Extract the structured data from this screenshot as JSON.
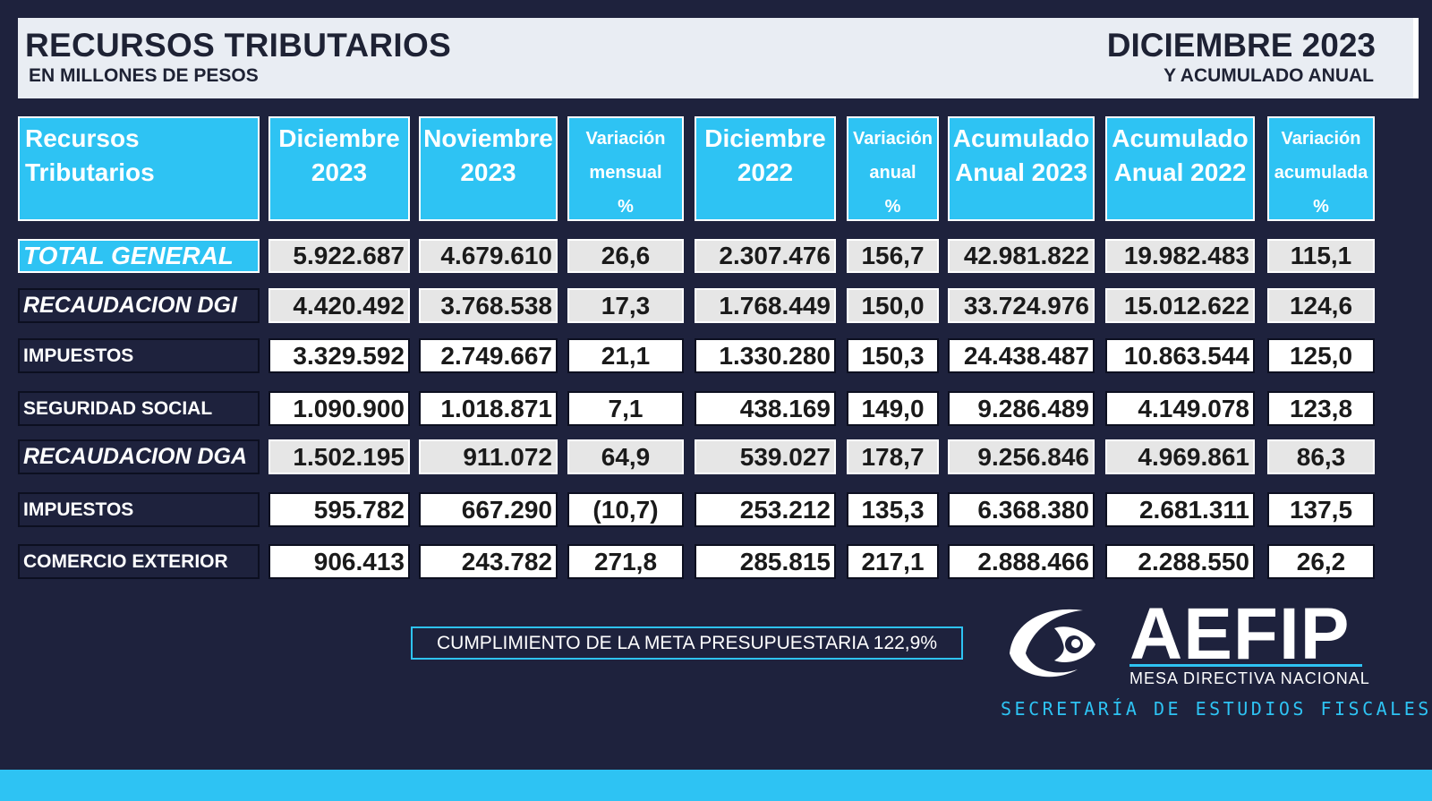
{
  "header": {
    "title": "RECURSOS TRIBUTARIOS",
    "subtitle": "EN MILLONES DE PESOS",
    "period": "DICIEMBRE 2023",
    "period_sub": "Y ACUMULADO ANUAL"
  },
  "table": {
    "columns": [
      {
        "l1": "Recursos",
        "l2": "Tributarios",
        "l3": ""
      },
      {
        "l1": "Diciembre",
        "l2": "2023",
        "l3": ""
      },
      {
        "l1": "Noviembre",
        "l2": "2023",
        "l3": ""
      },
      {
        "l1": "Variación",
        "l2": "mensual",
        "l3": "%"
      },
      {
        "l1": "Diciembre",
        "l2": "2022",
        "l3": ""
      },
      {
        "l1": "Variación",
        "l2": "anual",
        "l3": "%"
      },
      {
        "l1": "Acumulado",
        "l2": "Anual 2023",
        "l3": ""
      },
      {
        "l1": "Acumulado",
        "l2": "Anual 2022",
        "l3": ""
      },
      {
        "l1": "Variación",
        "l2": "acumulada",
        "l3": "%"
      }
    ],
    "rows": [
      {
        "label": "TOTAL GENERAL",
        "style": "total",
        "values": [
          "5.922.687",
          "4.679.610",
          "26,6",
          "2.307.476",
          "156,7",
          "42.981.822",
          "19.982.483",
          "115,1"
        ]
      },
      {
        "label": "RECAUDACION DGI",
        "style": "italic",
        "values": [
          "4.420.492",
          "3.768.538",
          "17,3",
          "1.768.449",
          "150,0",
          "33.724.976",
          "15.012.622",
          "124,6"
        ]
      },
      {
        "label": "IMPUESTOS",
        "style": "plain",
        "values": [
          "3.329.592",
          "2.749.667",
          "21,1",
          "1.330.280",
          "150,3",
          "24.438.487",
          "10.863.544",
          "125,0"
        ]
      },
      {
        "label": "SEGURIDAD SOCIAL",
        "style": "plain",
        "values": [
          "1.090.900",
          "1.018.871",
          "7,1",
          "438.169",
          "149,0",
          "9.286.489",
          "4.149.078",
          "123,8"
        ]
      },
      {
        "label": "RECAUDACION DGA",
        "style": "italic",
        "values": [
          "1.502.195",
          "911.072",
          "64,9",
          "539.027",
          "178,7",
          "9.256.846",
          "4.969.861",
          "86,3"
        ]
      },
      {
        "label": "IMPUESTOS",
        "style": "plain",
        "values": [
          "595.782",
          "667.290",
          "(10,7)",
          "253.212",
          "135,3",
          "6.368.380",
          "2.681.311",
          "137,5"
        ]
      },
      {
        "label": "COMERCIO EXTERIOR",
        "style": "plain",
        "values": [
          "906.413",
          "243.782",
          "271,8",
          "285.815",
          "217,1",
          "2.888.466",
          "2.288.550",
          "26,2"
        ]
      }
    ]
  },
  "footer": {
    "meta_text": "CUMPLIMIENTO DE LA META PRESUPUESTARIA 122,9%",
    "logo_name": "AEFIP",
    "logo_tagline": "MESA DIRECTIVA NACIONAL",
    "logo_secretaria": "SECRETARÍA DE ESTUDIOS FISCALES",
    "logo_icon": "eye-emblem-icon"
  },
  "colors": {
    "background": "#1e223d",
    "accent": "#2ec3f3",
    "header_band": "#e9edf3",
    "row_gray": "#e6e6e6",
    "row_white": "#ffffff"
  }
}
